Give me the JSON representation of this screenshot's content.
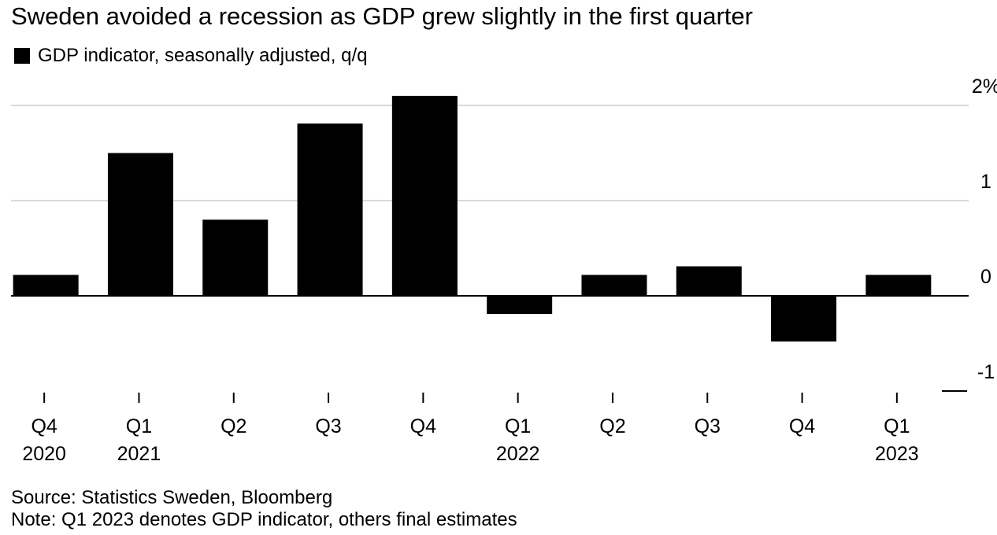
{
  "chart_data": {
    "type": "bar",
    "title": "Sweden avoided a recession as GDP grew slightly in the first quarter",
    "legend": [
      "GDP indicator, seasonally adjusted, q/q"
    ],
    "categories": [
      {
        "quarter": "Q4",
        "year": "2020"
      },
      {
        "quarter": "Q1",
        "year": "2021"
      },
      {
        "quarter": "Q2",
        "year": ""
      },
      {
        "quarter": "Q3",
        "year": ""
      },
      {
        "quarter": "Q4",
        "year": ""
      },
      {
        "quarter": "Q1",
        "year": "2022"
      },
      {
        "quarter": "Q2",
        "year": ""
      },
      {
        "quarter": "Q3",
        "year": ""
      },
      {
        "quarter": "Q4",
        "year": ""
      },
      {
        "quarter": "Q1",
        "year": "2023"
      }
    ],
    "series": [
      {
        "name": "GDP indicator, seasonally adjusted, q/q",
        "color": "#000000",
        "values": [
          0.22,
          1.5,
          0.8,
          1.81,
          2.1,
          -0.19,
          0.22,
          0.31,
          -0.48,
          0.22
        ]
      }
    ],
    "ylim": [
      -1,
      2
    ],
    "yticks": [
      {
        "value": 2,
        "label": "2%"
      },
      {
        "value": 1,
        "label": "1"
      },
      {
        "value": 0,
        "label": "0"
      },
      {
        "value": -1,
        "label": "-1"
      }
    ],
    "xlabel": "",
    "ylabel": "",
    "grid": true,
    "axis_position": "right"
  },
  "footer": {
    "source": "Source: Statistics Sweden, Bloomberg",
    "note": "Note: Q1 2023 denotes GDP indicator, others final estimates"
  },
  "colors": {
    "bar": "#000000",
    "grid": "#d9d9d9",
    "zero_line": "#000000",
    "background": "#ffffff"
  }
}
